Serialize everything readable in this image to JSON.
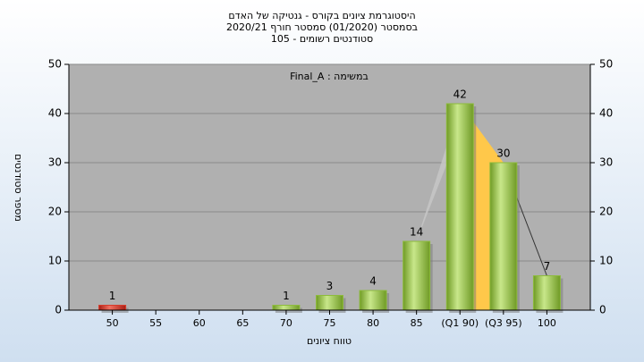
{
  "chart_data": {
    "type": "bar",
    "title": [
      "היסטוגרמת ציונים בקורס - גנטיקה של האדם",
      "בסמסטר  (01/2020)  סמסטר חורף 2020/21",
      "סטודנטים רשומים - 105"
    ],
    "annotation": "Final_A : במשימה",
    "xlabel": "טווח ציונים",
    "ylabel": "מספר סטודנטים",
    "categories": [
      "50",
      "55",
      "60",
      "65",
      "70",
      "75",
      "80",
      "85",
      "(Q1 90)",
      "(Q3 95)",
      "100"
    ],
    "values": [
      1,
      0,
      0,
      0,
      1,
      3,
      4,
      14,
      42,
      30,
      7
    ],
    "value_labels": [
      "1",
      null,
      null,
      null,
      "1",
      "3",
      "4",
      "14",
      "42",
      "30",
      "7"
    ],
    "colors": [
      "#d63a2a",
      "#8dbb3c",
      "#8dbb3c",
      "#8dbb3c",
      "#8dbb3c",
      "#8dbb3c",
      "#8dbb3c",
      "#8dbb3c",
      "#8dbb3c",
      "#8dbb3c",
      "#8dbb3c"
    ],
    "ylim": [
      0,
      50
    ],
    "yticks": [
      0,
      10,
      20,
      30,
      40,
      50
    ],
    "y2lim": [
      0,
      50
    ],
    "y2ticks": [
      0,
      10,
      20,
      30,
      40,
      50
    ],
    "grid": true
  }
}
